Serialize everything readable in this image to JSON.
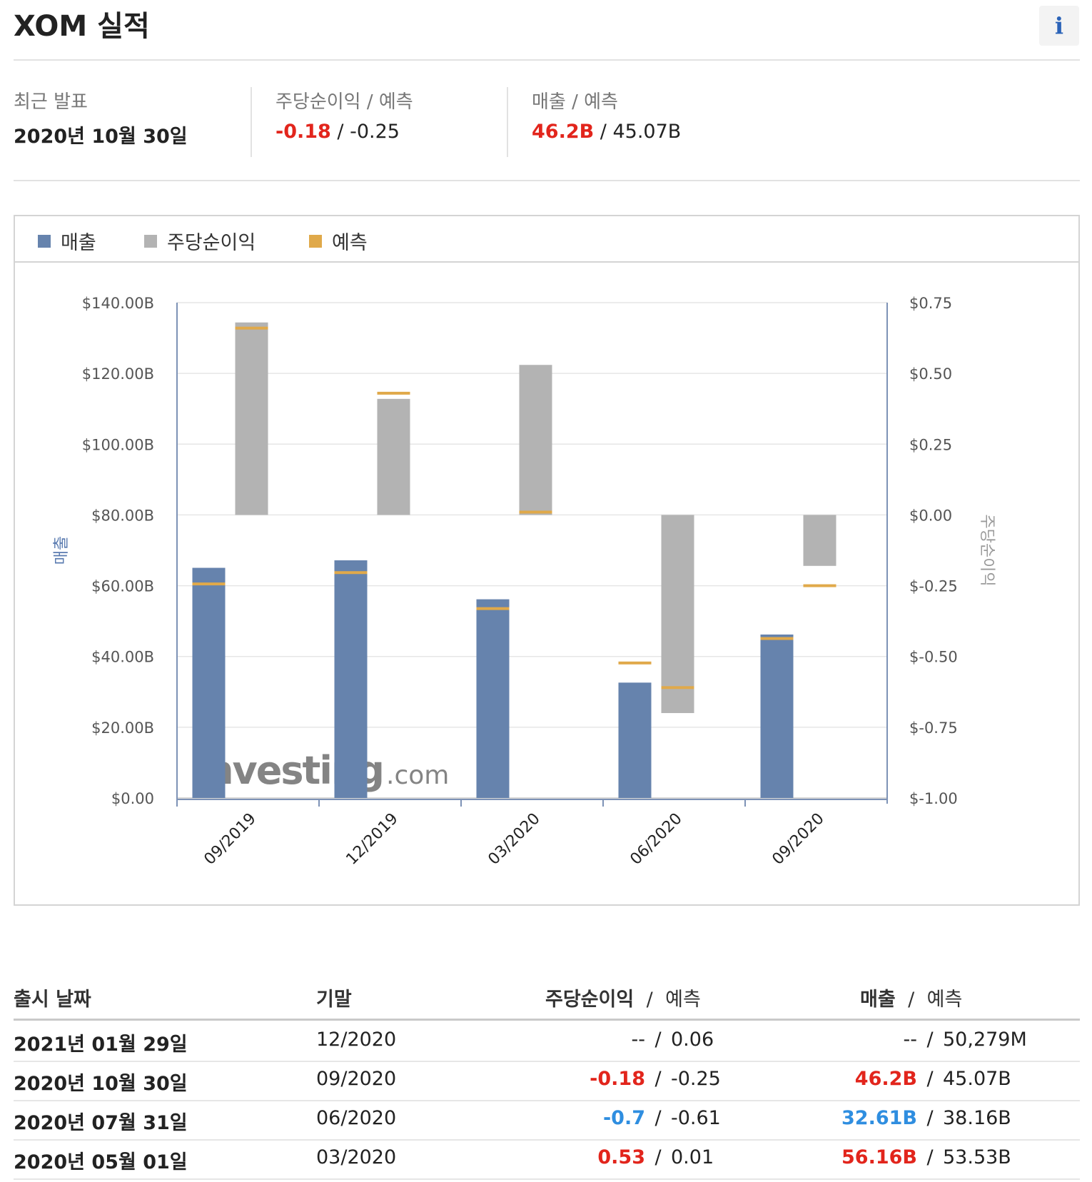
{
  "page": {
    "title": "XOM 실적",
    "info_icon": "i"
  },
  "summary": {
    "latest": {
      "label": "최근 발표",
      "value": "2020년 10월 30일"
    },
    "eps": {
      "label": "주당순이익 / 예측",
      "actual": "-0.18",
      "sep": " / ",
      "forecast": "-0.25",
      "actual_color": "#e2251c"
    },
    "revenue": {
      "label": "매출 / 예측",
      "actual": "46.2B",
      "sep": " / ",
      "forecast": "45.07B",
      "actual_color": "#e2251c"
    }
  },
  "legend": {
    "revenue": "매출",
    "eps": "주당순이익",
    "forecast": "예측"
  },
  "colors": {
    "revenue": "#6683ad",
    "eps": "#b3b3b3",
    "forecast": "#e0a94a",
    "positive": "#e2251c",
    "negative": "#2f8ee0"
  },
  "chart_data": {
    "type": "bar",
    "categories": [
      "09/2019",
      "12/2019",
      "03/2020",
      "06/2020",
      "09/2020"
    ],
    "series": [
      {
        "name": "매출",
        "axis": "left",
        "values": [
          65.05,
          67.17,
          56.16,
          32.61,
          46.2
        ],
        "forecast": [
          60.5,
          63.7,
          53.53,
          38.16,
          45.07
        ]
      },
      {
        "name": "주당순이익",
        "axis": "right",
        "values": [
          0.68,
          0.41,
          0.53,
          -0.7,
          -0.18
        ],
        "forecast": [
          0.66,
          0.43,
          0.01,
          -0.61,
          -0.25
        ]
      }
    ],
    "left_axis": {
      "label": "매출",
      "ylim": [
        0,
        140
      ],
      "ticks": [
        "$0.00",
        "$20.00B",
        "$40.00B",
        "$60.00B",
        "$80.00B",
        "$100.00B",
        "$120.00B",
        "$140.00B"
      ]
    },
    "right_axis": {
      "label": "주당순이익",
      "ylim": [
        -1,
        0.75
      ],
      "ticks": [
        "$-1.00",
        "$-0.75",
        "$-0.50",
        "$-0.25",
        "$0.00",
        "$0.25",
        "$0.50",
        "$0.75"
      ]
    },
    "watermark": "Investing.com",
    "grid": true,
    "legend": "top-left"
  },
  "table": {
    "headers": {
      "release_date": "출시 날짜",
      "period_end": "기말",
      "eps": "주당순이익",
      "revenue": "매출",
      "forecast": "예측",
      "sep": "/"
    },
    "rows": [
      {
        "date": "2021년 01월 29일",
        "period": "12/2020",
        "eps": "--",
        "eps_fc": "0.06",
        "rev": "--",
        "rev_fc": "50,279M",
        "eps_class": "",
        "rev_class": ""
      },
      {
        "date": "2020년 10월 30일",
        "period": "09/2020",
        "eps": "-0.18",
        "eps_fc": "-0.25",
        "rev": "46.2B",
        "rev_fc": "45.07B",
        "eps_class": "red b",
        "rev_class": "red b"
      },
      {
        "date": "2020년 07월 31일",
        "period": "06/2020",
        "eps": "-0.7",
        "eps_fc": "-0.61",
        "rev": "32.61B",
        "rev_fc": "38.16B",
        "eps_class": "blue b",
        "rev_class": "blue b"
      },
      {
        "date": "2020년 05월 01일",
        "period": "03/2020",
        "eps": "0.53",
        "eps_fc": "0.01",
        "rev": "56.16B",
        "rev_fc": "53.53B",
        "eps_class": "red b",
        "rev_class": "red b"
      }
    ]
  }
}
